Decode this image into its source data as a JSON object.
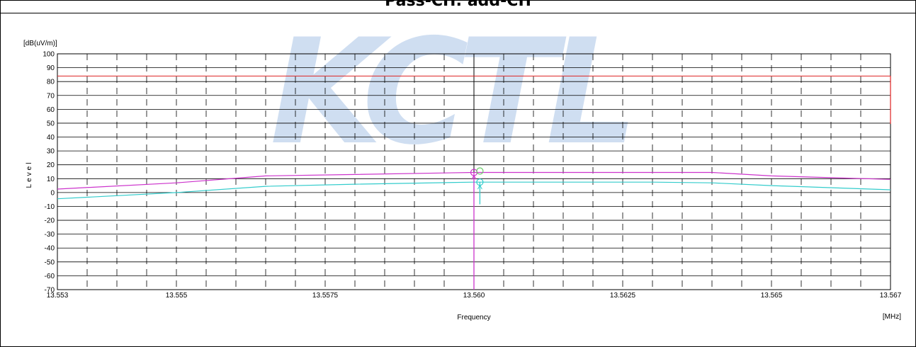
{
  "header": {
    "title": "Pass-CH: add-CH"
  },
  "watermark": {
    "text": "KCTL",
    "color": "#a9c4e6"
  },
  "chart_data": {
    "type": "line",
    "unit_label": "[dB(uV/m)]",
    "ylabel": "Level",
    "xlabel": "Frequency",
    "xunit": "[MHz]",
    "xlim": [
      13.553,
      13.567
    ],
    "ylim": [
      -70,
      100
    ],
    "grid": true,
    "x_tick_values": [
      13.553,
      13.555,
      13.5575,
      13.56,
      13.5625,
      13.565,
      13.567
    ],
    "x_tick_labels": [
      "13.553",
      "13.555",
      "13.5575",
      "13.560",
      "13.5625",
      "13.565",
      "13.567"
    ],
    "y_tick_values": [
      100,
      90,
      80,
      70,
      60,
      50,
      40,
      30,
      20,
      10,
      0,
      -10,
      -20,
      -30,
      -40,
      -50,
      -60,
      -70
    ],
    "y_tick_labels": [
      "100",
      "90",
      "80",
      "70",
      "60",
      "50",
      "40",
      "30",
      "20",
      "10",
      "0",
      "-10",
      "-20",
      "-30",
      "-40",
      "-50",
      "-60",
      "-70"
    ],
    "series": [
      {
        "color": "#cc33cc",
        "x": [
          13.553,
          13.555,
          13.5565,
          13.558,
          13.56,
          13.5615,
          13.563,
          13.564,
          13.565,
          13.567
        ],
        "y": [
          2.5,
          7,
          12,
          13,
          14.5,
          14.5,
          14.5,
          14.5,
          12,
          9.5
        ]
      },
      {
        "color": "#33cccc",
        "x": [
          13.553,
          13.555,
          13.5565,
          13.558,
          13.56,
          13.5615,
          13.563,
          13.564,
          13.565,
          13.567
        ],
        "y": [
          -4.5,
          0,
          4.5,
          6,
          7.5,
          7.5,
          7.5,
          7,
          5,
          2
        ]
      }
    ],
    "limit_line": {
      "color": "#dd2222",
      "y": 84,
      "x_start": 13.553,
      "x_end": 13.567,
      "drop_to": 49.5
    },
    "markers": [
      {
        "color": "#cc33cc",
        "x": 13.56,
        "y": 14.5,
        "bottom": -70
      },
      {
        "color": "#33cccc",
        "x": 13.5601,
        "y": 7.5,
        "bottom": -8.5
      },
      {
        "color": "#66cc66",
        "x": 13.5601,
        "y": 15.5
      }
    ]
  }
}
